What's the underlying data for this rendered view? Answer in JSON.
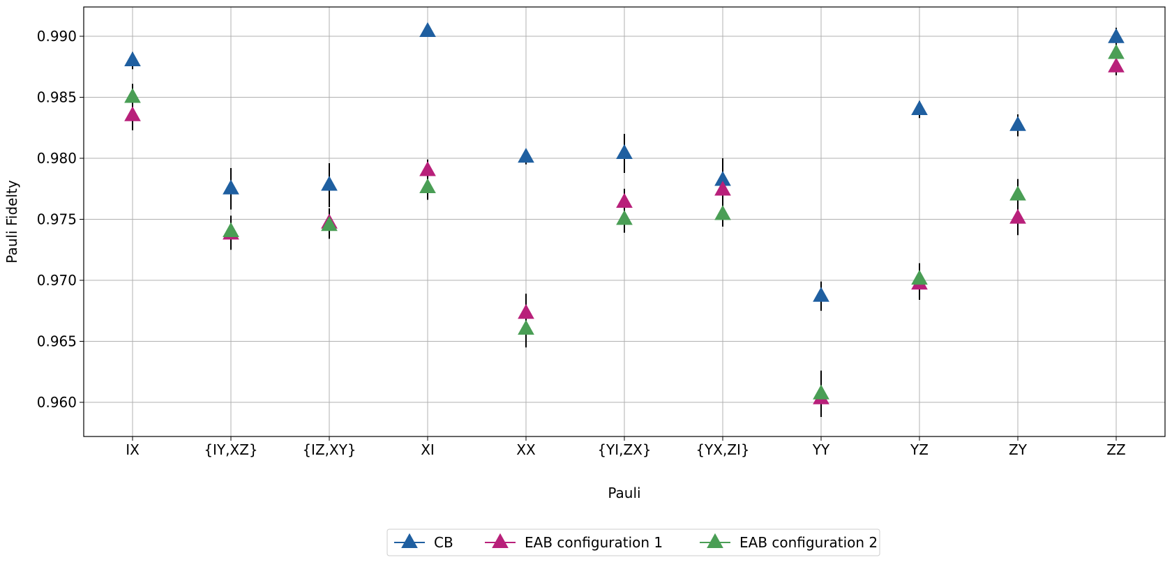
{
  "chart_data": {
    "type": "scatter",
    "xlabel": "Pauli",
    "ylabel": "Pauli Fidelty",
    "categories": [
      "IX",
      "{IY,XZ}",
      "{IZ,XY}",
      "XI",
      "XX",
      "{YI,ZX}",
      "{YX,ZI}",
      "YY",
      "YZ",
      "ZY",
      "ZZ"
    ],
    "ylim": [
      0.9572,
      0.9924
    ],
    "yticks": [
      "0.960",
      "0.965",
      "0.970",
      "0.975",
      "0.980",
      "0.985",
      "0.990"
    ],
    "grid": true,
    "legend_position": "bottom-center",
    "marker": "triangle-up",
    "errorbar_color": "#000000",
    "series": [
      {
        "name": "CB",
        "color": "#1f5fa0",
        "values": [
          0.988,
          0.9775,
          0.9778,
          0.9904,
          0.9801,
          0.9804,
          0.9782,
          0.9687,
          0.984,
          0.9827,
          0.9899
        ],
        "errors": [
          0.0007,
          0.0017,
          0.0018,
          0.0004,
          0.0006,
          0.0016,
          0.0018,
          0.0012,
          0.0007,
          0.0009,
          0.0008
        ]
      },
      {
        "name": "EAB configuration 1",
        "color": "#b8207a",
        "values": [
          0.9835,
          0.9738,
          0.9747,
          0.979,
          0.9673,
          0.9764,
          0.9774,
          0.9603,
          0.9697,
          0.9751,
          0.9875
        ],
        "errors": [
          0.0012,
          0.0013,
          0.0012,
          0.0009,
          0.0016,
          0.0011,
          0.001,
          0.0015,
          0.0013,
          0.0014,
          0.0007
        ]
      },
      {
        "name": "EAB configuration 2",
        "color": "#4a9e55",
        "values": [
          0.985,
          0.974,
          0.9745,
          0.9776,
          0.966,
          0.975,
          0.9754,
          0.9607,
          0.9701,
          0.977,
          0.9886
        ],
        "errors": [
          0.0011,
          0.0013,
          0.0011,
          0.001,
          0.0015,
          0.0011,
          0.001,
          0.0019,
          0.0013,
          0.0013,
          0.0007
        ]
      }
    ]
  }
}
